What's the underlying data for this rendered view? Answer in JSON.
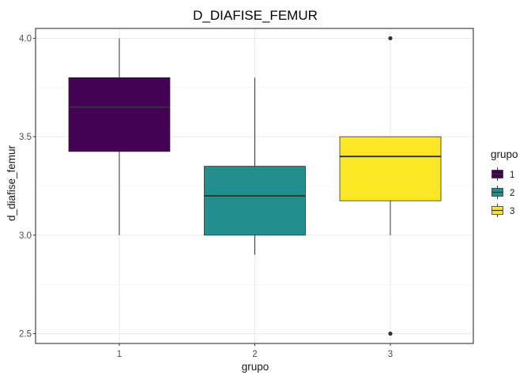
{
  "chart_data": {
    "type": "boxplot",
    "title": "D_DIAFISE_FEMUR",
    "xlabel": "grupo",
    "ylabel": "d_diafise_femur",
    "categories": [
      "1",
      "2",
      "3"
    ],
    "ylim": [
      2.45,
      4.05
    ],
    "yticks": [
      2.5,
      3.0,
      3.5,
      4.0
    ],
    "ytick_labels": [
      "2.5",
      "3.0",
      "3.5",
      "4.0"
    ],
    "grid": true,
    "legend": {
      "title": "grupo",
      "position": "right",
      "entries": [
        "1",
        "2",
        "3"
      ]
    },
    "boxes": [
      {
        "group": "1",
        "color": "#440154",
        "whisker_low": 3.0,
        "q1": 3.425,
        "median": 3.65,
        "q3": 3.8,
        "whisker_high": 4.0,
        "outliers": []
      },
      {
        "group": "2",
        "color": "#21908C",
        "whisker_low": 2.9,
        "q1": 3.0,
        "median": 3.2,
        "q3": 3.35,
        "whisker_high": 3.8,
        "outliers": []
      },
      {
        "group": "3",
        "color": "#FDE725",
        "whisker_low": 3.0,
        "q1": 3.175,
        "median": 3.4,
        "q3": 3.5,
        "whisker_high": 3.5,
        "outliers": [
          2.5,
          4.0
        ]
      }
    ]
  }
}
